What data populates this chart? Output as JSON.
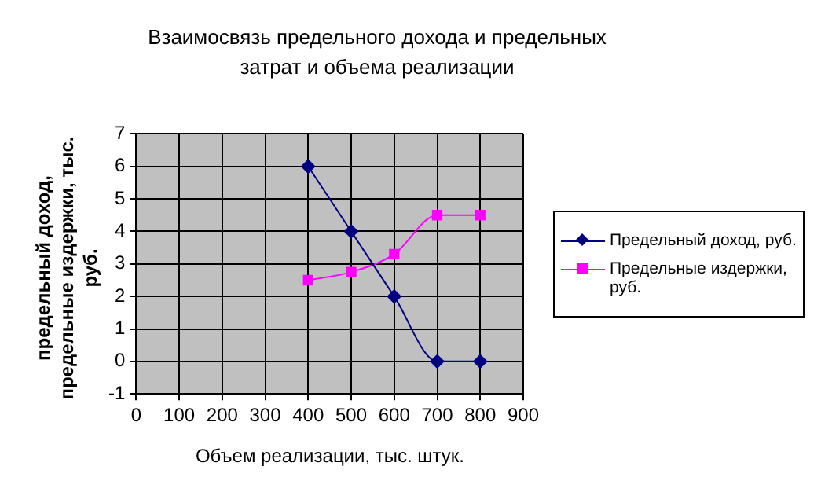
{
  "chart_data": {
    "type": "line",
    "title": "Взаимосвязь предельного дохода и предельных затрат и объема реализации",
    "xlabel": "Объем реализации, тыс. штук.",
    "ylabel": "предельный доход, предельные издержки, тыс. руб.",
    "x": [
      400,
      500,
      600,
      700,
      800
    ],
    "series": [
      {
        "name": "Предельный доход, руб.",
        "color": "#000080",
        "marker": "diamond",
        "values": [
          6,
          4,
          2,
          0,
          0
        ]
      },
      {
        "name": "Предельные издержки, руб.",
        "color": "#ff00ff",
        "marker": "square",
        "values": [
          2.5,
          2.75,
          3.3,
          4.5,
          4.5
        ]
      }
    ],
    "xlim": [
      0,
      900
    ],
    "xticks": [
      0,
      100,
      200,
      300,
      400,
      500,
      600,
      700,
      800,
      900
    ],
    "ylim": [
      -1,
      7
    ],
    "yticks": [
      -1,
      0,
      1,
      2,
      3,
      4,
      5,
      6,
      7
    ],
    "grid": true,
    "legend": "right"
  }
}
